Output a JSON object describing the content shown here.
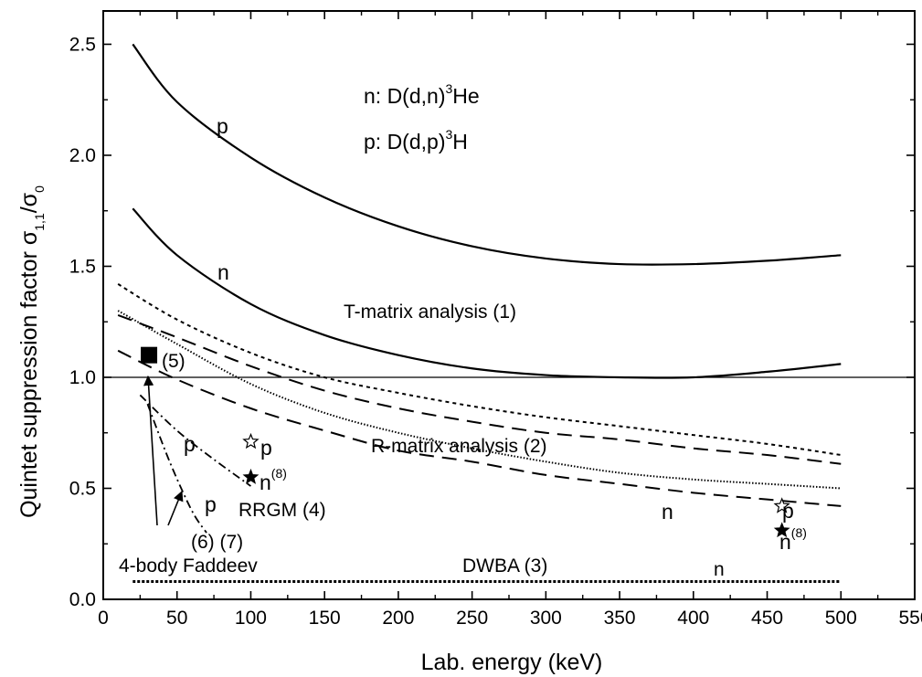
{
  "chart_data": {
    "type": "line",
    "xlabel": "Lab. energy (keV)",
    "ylabel_main": "Quintet suppression factor σ",
    "ylabel_sub1": "1,1",
    "ylabel_sep": "/σ",
    "ylabel_sub2": "0",
    "xlim": [
      0,
      550
    ],
    "ylim": [
      0,
      2.65
    ],
    "xticks": [
      "0",
      "50",
      "100",
      "150",
      "200",
      "250",
      "300",
      "350",
      "400",
      "450",
      "500",
      "550"
    ],
    "yticks": [
      "0.0",
      "0.5",
      "1.0",
      "1.5",
      "2.0",
      "2.5"
    ],
    "reference_line": 1.0,
    "legend_text": {
      "n_line_prefix": "n: D(d,n)",
      "n_line_sup": "3",
      "n_line_suffix": "He",
      "p_line_prefix": "p:  D(d,p)",
      "p_line_sup": "3",
      "p_line_suffix": "H"
    },
    "series": [
      {
        "id": "tmatrix_p",
        "style": "solid",
        "x": [
          20,
          50,
          100,
          150,
          200,
          250,
          300,
          350,
          400,
          450,
          500
        ],
        "y": [
          2.5,
          2.24,
          1.99,
          1.81,
          1.68,
          1.59,
          1.535,
          1.51,
          1.51,
          1.525,
          1.55
        ]
      },
      {
        "id": "tmatrix_n",
        "style": "solid",
        "x": [
          20,
          50,
          100,
          150,
          200,
          250,
          300,
          350,
          400,
          450,
          500
        ],
        "y": [
          1.76,
          1.55,
          1.33,
          1.19,
          1.1,
          1.04,
          1.01,
          1.0,
          1.0,
          1.025,
          1.06
        ]
      },
      {
        "id": "rmatrix_p",
        "style": "short-dash",
        "x": [
          10,
          50,
          100,
          150,
          200,
          250,
          300,
          350,
          400,
          450,
          500
        ],
        "y": [
          1.42,
          1.26,
          1.11,
          1.0,
          0.93,
          0.87,
          0.82,
          0.78,
          0.74,
          0.7,
          0.65
        ]
      },
      {
        "id": "rmatrix_n1",
        "style": "long-dash",
        "x": [
          10,
          50,
          100,
          150,
          200,
          250,
          300,
          350,
          400,
          450,
          500
        ],
        "y": [
          1.28,
          1.18,
          1.05,
          0.94,
          0.86,
          0.8,
          0.75,
          0.72,
          0.68,
          0.65,
          0.61
        ]
      },
      {
        "id": "rmatrix_n2",
        "style": "long-dash",
        "x": [
          10,
          50,
          100,
          150,
          200,
          250,
          300,
          350,
          400,
          450,
          500
        ],
        "y": [
          1.12,
          0.99,
          0.86,
          0.76,
          0.67,
          0.62,
          0.56,
          0.52,
          0.48,
          0.45,
          0.42
        ]
      },
      {
        "id": "dotted_curve",
        "style": "dotted",
        "x": [
          10,
          50,
          100,
          150,
          200,
          250,
          300,
          350,
          400,
          450,
          500
        ],
        "y": [
          1.3,
          1.15,
          0.97,
          0.84,
          0.75,
          0.68,
          0.62,
          0.57,
          0.54,
          0.52,
          0.5
        ]
      },
      {
        "id": "rrgm_p",
        "style": "dash-dot",
        "x": [
          25,
          50,
          75,
          100
        ],
        "y": [
          0.92,
          0.76,
          0.63,
          0.51
        ]
      },
      {
        "id": "faddeev_p",
        "style": "dash-dot",
        "x": [
          30,
          45,
          60,
          70
        ],
        "y": [
          0.88,
          0.62,
          0.4,
          0.3
        ]
      },
      {
        "id": "dwba_n",
        "style": "dense-dot",
        "x": [
          20,
          500
        ],
        "y": [
          0.08,
          0.08
        ]
      }
    ],
    "points": [
      {
        "label": "(5)",
        "x": 31,
        "y": 1.1,
        "marker": "filled-square"
      },
      {
        "label": "p",
        "x": 100,
        "y": 0.71,
        "marker": "open-star"
      },
      {
        "label": "n",
        "sup": "(8)",
        "x": 100,
        "y": 0.55,
        "marker": "filled-star"
      },
      {
        "label": "p",
        "x": 460,
        "y": 0.42,
        "marker": "open-star"
      },
      {
        "label": "n",
        "sup": "(8)",
        "x": 460,
        "y": 0.31,
        "marker": "filled-star"
      }
    ],
    "annotations": {
      "tmatrix": "T-matrix analysis (1)",
      "rmatrix": "R-matrix analysis (2)",
      "dwba": "DWBA (3)",
      "rrgm": "RRGM (4)",
      "faddeev": "4-body Faddeev",
      "ref67": "(6) (7)",
      "label_p": "p",
      "label_n": "n"
    }
  }
}
